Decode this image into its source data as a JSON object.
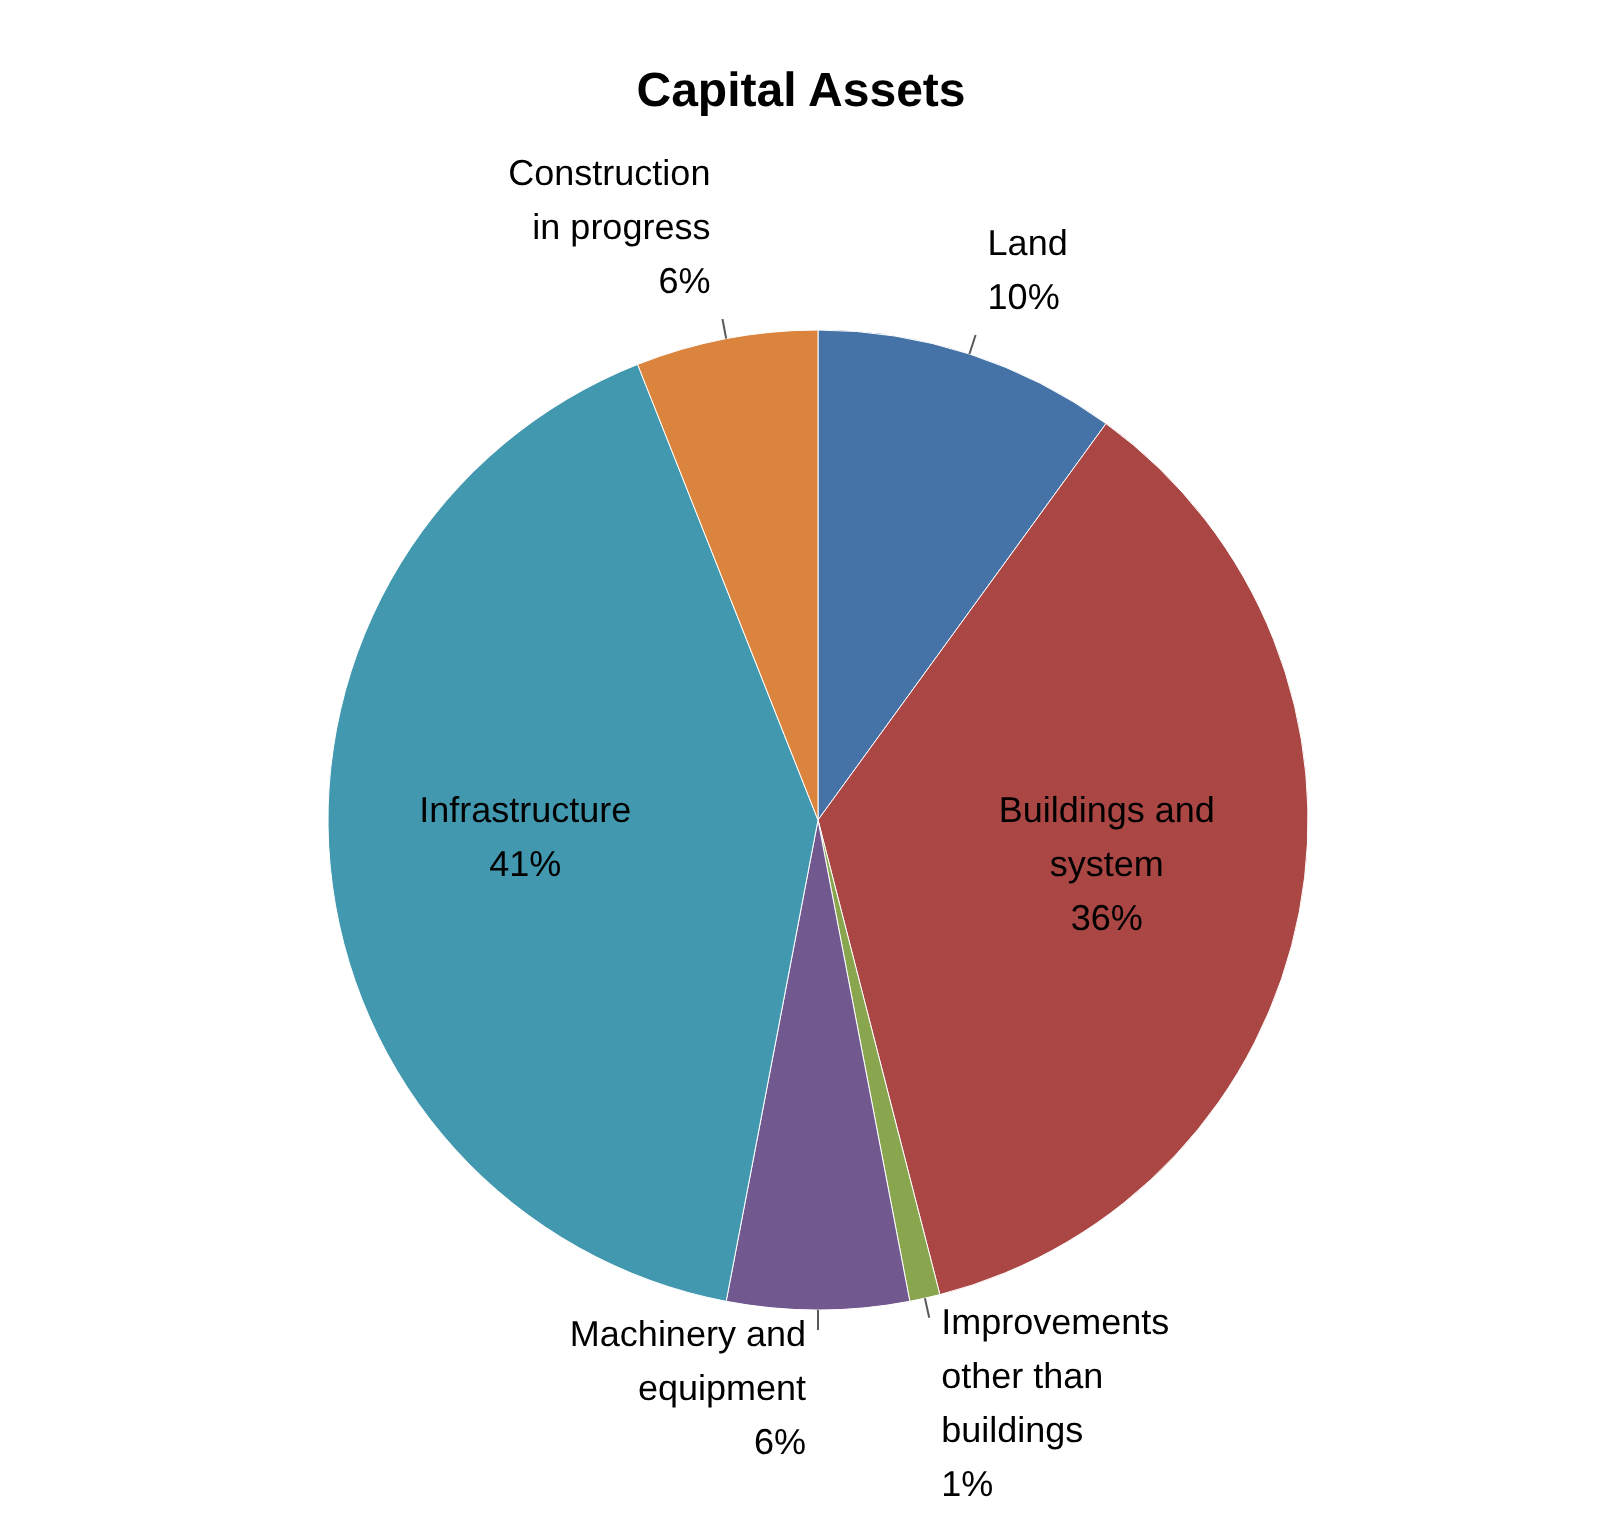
{
  "chart_data": {
    "type": "pie",
    "title": "Capital Assets",
    "categories": [
      "Land",
      "Buildings and system",
      "Improvements other than buildings",
      "Machinery and equipment",
      "Infrastructure",
      "Construction in progress"
    ],
    "values": [
      10,
      36,
      1,
      6,
      41,
      6
    ],
    "value_labels": [
      "10%",
      "36%",
      "1%",
      "6%",
      "41%",
      "6%"
    ],
    "colors": [
      "#4572a7",
      "#aa4643",
      "#89a54e",
      "#71588f",
      "#4198af",
      "#db843d"
    ],
    "legend": false
  }
}
